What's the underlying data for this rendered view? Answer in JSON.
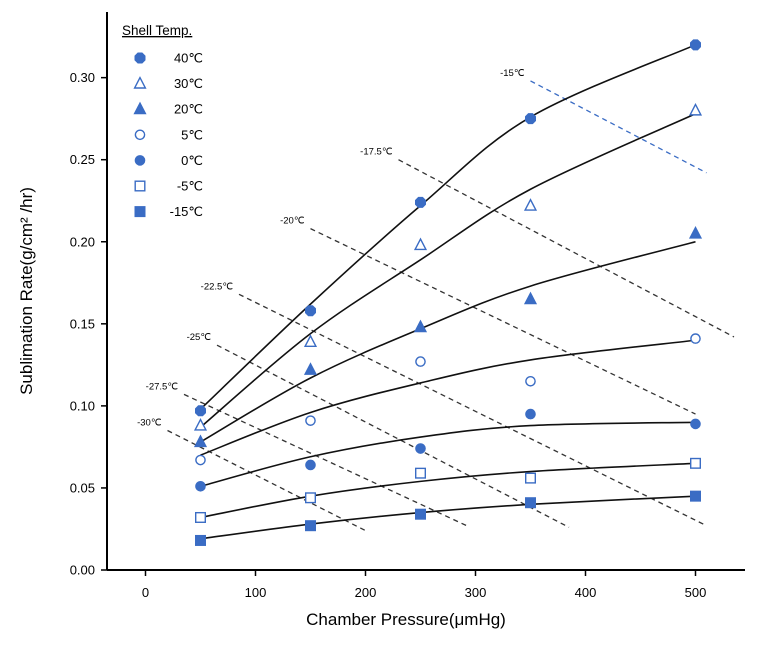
{
  "chart_data": {
    "type": "scatter",
    "xlabel": "Chamber Pressure(μmHg)",
    "ylabel": "Sublimation Rate(g/cm² /hr)",
    "xlim": [
      -35,
      545
    ],
    "ylim": [
      0,
      0.34
    ],
    "x_ticks": [
      0,
      100,
      200,
      300,
      400,
      500
    ],
    "x_tick_labels": [
      "0",
      "100",
      "200",
      "300",
      "400",
      "500"
    ],
    "y_ticks": [
      0,
      0.05,
      0.1,
      0.15,
      0.2,
      0.25,
      0.3
    ],
    "y_tick_labels": [
      "0.00",
      "0.05",
      "0.10",
      "0.15",
      "0.20",
      "0.25",
      "0.30"
    ],
    "legend_title": "Shell Temp.",
    "legend_position": "top-left",
    "series": [
      {
        "name": "40℃",
        "marker": "octagon-filled",
        "color": "#3a6cc4",
        "x": [
          50,
          150,
          250,
          350,
          500
        ],
        "y": [
          0.097,
          0.158,
          0.224,
          0.275,
          0.32
        ],
        "curve_y": [
          0.098,
          0.162,
          0.222,
          0.276,
          0.32
        ]
      },
      {
        "name": "30℃",
        "marker": "triangle-open",
        "color": "#3a6cc4",
        "x": [
          50,
          150,
          250,
          350,
          500
        ],
        "y": [
          0.088,
          0.139,
          0.198,
          0.222,
          0.28
        ],
        "curve_y": [
          0.087,
          0.144,
          0.189,
          0.232,
          0.278
        ]
      },
      {
        "name": "20℃",
        "marker": "triangle-filled",
        "color": "#3a6cc4",
        "x": [
          50,
          150,
          250,
          350,
          500
        ],
        "y": [
          0.078,
          0.122,
          0.148,
          0.165,
          0.205
        ],
        "curve_y": [
          0.078,
          0.117,
          0.147,
          0.173,
          0.2
        ]
      },
      {
        "name": "5℃",
        "marker": "circle-open",
        "color": "#3a6cc4",
        "x": [
          50,
          150,
          250,
          350,
          500
        ],
        "y": [
          0.067,
          0.091,
          0.127,
          0.115,
          0.141
        ],
        "curve_y": [
          0.07,
          0.096,
          0.114,
          0.128,
          0.14
        ]
      },
      {
        "name": "0℃",
        "marker": "circle-filled",
        "color": "#3a6cc4",
        "x": [
          50,
          150,
          250,
          350,
          500
        ],
        "y": [
          0.051,
          0.064,
          0.074,
          0.095,
          0.089
        ],
        "curve_y": [
          0.051,
          0.069,
          0.081,
          0.088,
          0.09
        ]
      },
      {
        "name": "-5℃",
        "marker": "square-open",
        "color": "#3a6cc4",
        "x": [
          50,
          150,
          250,
          350,
          500
        ],
        "y": [
          0.032,
          0.044,
          0.059,
          0.056,
          0.065
        ],
        "curve_y": [
          0.032,
          0.045,
          0.054,
          0.06,
          0.065
        ]
      },
      {
        "name": "-15℃",
        "marker": "square-filled",
        "color": "#3a6cc4",
        "x": [
          50,
          150,
          250,
          350,
          500
        ],
        "y": [
          0.018,
          0.027,
          0.034,
          0.041,
          0.045
        ],
        "curve_y": [
          0.019,
          0.028,
          0.035,
          0.04,
          0.045
        ]
      }
    ],
    "product_temperature_isotherms": [
      {
        "label": "-15℃",
        "color": "#3a6cc4",
        "from": [
          350,
          0.298
        ],
        "to": [
          510,
          0.242
        ]
      },
      {
        "label": "-17.5℃",
        "color": "#333333",
        "from": [
          230,
          0.25
        ],
        "to": [
          535,
          0.142
        ]
      },
      {
        "label": "-20℃",
        "color": "#333333",
        "from": [
          150,
          0.208
        ],
        "to": [
          500,
          0.095
        ]
      },
      {
        "label": "-22.5℃",
        "color": "#333333",
        "from": [
          85,
          0.168
        ],
        "to": [
          510,
          0.027
        ]
      },
      {
        "label": "-25℃",
        "color": "#333333",
        "from": [
          65,
          0.137
        ],
        "to": [
          385,
          0.026
        ]
      },
      {
        "label": "-27.5℃",
        "color": "#333333",
        "from": [
          35,
          0.107
        ],
        "to": [
          292,
          0.027
        ]
      },
      {
        "label": "-30℃",
        "color": "#333333",
        "from": [
          20,
          0.085
        ],
        "to": [
          200,
          0.024
        ]
      }
    ]
  }
}
